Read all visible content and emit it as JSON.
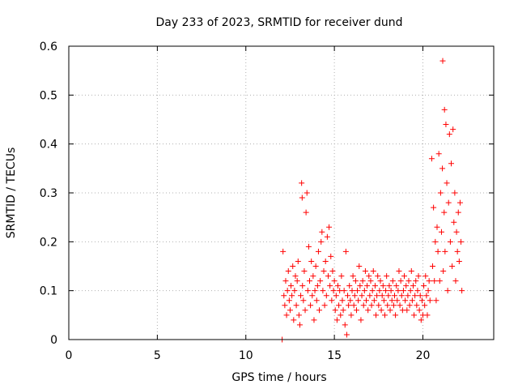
{
  "chart_data": {
    "type": "scatter",
    "title": "Day 233 of 2023, SRMTID for receiver dund",
    "xlabel": "GPS time / hours",
    "ylabel": "SRMTID / TECUs",
    "xlim": [
      0,
      24
    ],
    "ylim": [
      0,
      0.6
    ],
    "xticks": [
      0,
      5,
      10,
      15,
      20
    ],
    "yticks": [
      0,
      0.1,
      0.2,
      0.3,
      0.4,
      0.5,
      0.6
    ],
    "xtick_labels": [
      "0",
      "5",
      "10",
      "15",
      "20"
    ],
    "ytick_labels": [
      "0",
      "0.1",
      "0.2",
      "0.3",
      "0.4",
      "0.5",
      "0.6"
    ],
    "grid": true,
    "marker": "+",
    "marker_color": "#ff0000",
    "series": [
      {
        "name": "SRMTID",
        "points": [
          [
            12.05,
            0.0
          ],
          [
            12.1,
            0.18
          ],
          [
            12.15,
            0.09
          ],
          [
            12.2,
            0.07
          ],
          [
            12.25,
            0.12
          ],
          [
            12.3,
            0.05
          ],
          [
            12.35,
            0.1
          ],
          [
            12.4,
            0.14
          ],
          [
            12.45,
            0.08
          ],
          [
            12.5,
            0.06
          ],
          [
            12.55,
            0.11
          ],
          [
            12.6,
            0.09
          ],
          [
            12.65,
            0.15
          ],
          [
            12.7,
            0.04
          ],
          [
            12.75,
            0.1
          ],
          [
            12.8,
            0.13
          ],
          [
            12.85,
            0.07
          ],
          [
            12.9,
            0.12
          ],
          [
            12.95,
            0.16
          ],
          [
            13.0,
            0.05
          ],
          [
            13.05,
            0.03
          ],
          [
            13.1,
            0.09
          ],
          [
            13.15,
            0.32
          ],
          [
            13.18,
            0.29
          ],
          [
            13.2,
            0.11
          ],
          [
            13.25,
            0.08
          ],
          [
            13.3,
            0.14
          ],
          [
            13.35,
            0.06
          ],
          [
            13.4,
            0.26
          ],
          [
            13.45,
            0.3
          ],
          [
            13.5,
            0.1
          ],
          [
            13.55,
            0.19
          ],
          [
            13.6,
            0.12
          ],
          [
            13.65,
            0.07
          ],
          [
            13.7,
            0.16
          ],
          [
            13.75,
            0.09
          ],
          [
            13.8,
            0.13
          ],
          [
            13.85,
            0.04
          ],
          [
            13.9,
            0.1
          ],
          [
            13.95,
            0.15
          ],
          [
            14.0,
            0.08
          ],
          [
            14.05,
            0.11
          ],
          [
            14.1,
            0.18
          ],
          [
            14.15,
            0.06
          ],
          [
            14.2,
            0.12
          ],
          [
            14.25,
            0.2
          ],
          [
            14.3,
            0.22
          ],
          [
            14.35,
            0.1
          ],
          [
            14.4,
            0.14
          ],
          [
            14.45,
            0.07
          ],
          [
            14.5,
            0.16
          ],
          [
            14.55,
            0.09
          ],
          [
            14.6,
            0.21
          ],
          [
            14.65,
            0.13
          ],
          [
            14.7,
            0.23
          ],
          [
            14.75,
            0.11
          ],
          [
            14.8,
            0.17
          ],
          [
            14.85,
            0.08
          ],
          [
            14.9,
            0.14
          ],
          [
            14.95,
            0.1
          ],
          [
            15.0,
            0.12
          ],
          [
            15.05,
            0.06
          ],
          [
            15.1,
            0.09
          ],
          [
            15.15,
            0.04
          ],
          [
            15.2,
            0.11
          ],
          [
            15.25,
            0.07
          ],
          [
            15.3,
            0.1
          ],
          [
            15.35,
            0.05
          ],
          [
            15.4,
            0.13
          ],
          [
            15.45,
            0.08
          ],
          [
            15.5,
            0.06
          ],
          [
            15.55,
            0.1
          ],
          [
            15.6,
            0.03
          ],
          [
            15.65,
            0.18
          ],
          [
            15.7,
            0.01
          ],
          [
            15.75,
            0.09
          ],
          [
            15.8,
            0.07
          ],
          [
            15.85,
            0.11
          ],
          [
            15.9,
            0.08
          ],
          [
            15.95,
            0.05
          ],
          [
            16.0,
            0.1
          ],
          [
            16.05,
            0.13
          ],
          [
            16.1,
            0.07
          ],
          [
            16.15,
            0.09
          ],
          [
            16.2,
            0.12
          ],
          [
            16.25,
            0.06
          ],
          [
            16.3,
            0.1
          ],
          [
            16.35,
            0.08
          ],
          [
            16.4,
            0.15
          ],
          [
            16.45,
            0.11
          ],
          [
            16.5,
            0.04
          ],
          [
            16.55,
            0.09
          ],
          [
            16.6,
            0.12
          ],
          [
            16.65,
            0.07
          ],
          [
            16.7,
            0.1
          ],
          [
            16.75,
            0.14
          ],
          [
            16.8,
            0.08
          ],
          [
            16.85,
            0.11
          ],
          [
            16.9,
            0.06
          ],
          [
            16.95,
            0.13
          ],
          [
            17.0,
            0.09
          ],
          [
            17.05,
            0.12
          ],
          [
            17.1,
            0.07
          ],
          [
            17.15,
            0.1
          ],
          [
            17.2,
            0.14
          ],
          [
            17.25,
            0.08
          ],
          [
            17.3,
            0.11
          ],
          [
            17.35,
            0.05
          ],
          [
            17.4,
            0.09
          ],
          [
            17.45,
            0.13
          ],
          [
            17.5,
            0.07
          ],
          [
            17.55,
            0.1
          ],
          [
            17.6,
            0.12
          ],
          [
            17.65,
            0.06
          ],
          [
            17.7,
            0.09
          ],
          [
            17.75,
            0.11
          ],
          [
            17.8,
            0.08
          ],
          [
            17.85,
            0.05
          ],
          [
            17.9,
            0.1
          ],
          [
            17.95,
            0.13
          ],
          [
            18.0,
            0.07
          ],
          [
            18.05,
            0.09
          ],
          [
            18.1,
            0.11
          ],
          [
            18.15,
            0.06
          ],
          [
            18.2,
            0.1
          ],
          [
            18.25,
            0.08
          ],
          [
            18.3,
            0.12
          ],
          [
            18.35,
            0.07
          ],
          [
            18.4,
            0.09
          ],
          [
            18.45,
            0.05
          ],
          [
            18.5,
            0.11
          ],
          [
            18.55,
            0.08
          ],
          [
            18.6,
            0.1
          ],
          [
            18.65,
            0.14
          ],
          [
            18.7,
            0.07
          ],
          [
            18.75,
            0.12
          ],
          [
            18.8,
            0.09
          ],
          [
            18.85,
            0.06
          ],
          [
            18.9,
            0.1
          ],
          [
            18.95,
            0.13
          ],
          [
            19.0,
            0.08
          ],
          [
            19.05,
            0.11
          ],
          [
            19.1,
            0.06
          ],
          [
            19.15,
            0.09
          ],
          [
            19.2,
            0.12
          ],
          [
            19.25,
            0.07
          ],
          [
            19.3,
            0.1
          ],
          [
            19.35,
            0.14
          ],
          [
            19.4,
            0.08
          ],
          [
            19.45,
            0.11
          ],
          [
            19.5,
            0.05
          ],
          [
            19.55,
            0.09
          ],
          [
            19.6,
            0.12
          ],
          [
            19.65,
            0.07
          ],
          [
            19.7,
            0.1
          ],
          [
            19.75,
            0.13
          ],
          [
            19.8,
            0.06
          ],
          [
            19.85,
            0.09
          ],
          [
            19.9,
            0.04
          ],
          [
            19.95,
            0.08
          ],
          [
            20.0,
            0.05
          ],
          [
            20.05,
            0.11
          ],
          [
            20.1,
            0.07
          ],
          [
            20.15,
            0.13
          ],
          [
            20.2,
            0.09
          ],
          [
            20.25,
            0.05
          ],
          [
            20.3,
            0.1
          ],
          [
            20.35,
            0.12
          ],
          [
            20.4,
            0.08
          ],
          [
            20.5,
            0.37
          ],
          [
            20.55,
            0.15
          ],
          [
            20.6,
            0.27
          ],
          [
            20.65,
            0.12
          ],
          [
            20.7,
            0.2
          ],
          [
            20.75,
            0.08
          ],
          [
            20.8,
            0.23
          ],
          [
            20.85,
            0.18
          ],
          [
            20.9,
            0.38
          ],
          [
            20.95,
            0.12
          ],
          [
            21.0,
            0.3
          ],
          [
            21.05,
            0.22
          ],
          [
            21.1,
            0.35
          ],
          [
            21.12,
            0.57
          ],
          [
            21.15,
            0.14
          ],
          [
            21.2,
            0.26
          ],
          [
            21.22,
            0.47
          ],
          [
            21.25,
            0.18
          ],
          [
            21.3,
            0.44
          ],
          [
            21.35,
            0.32
          ],
          [
            21.4,
            0.1
          ],
          [
            21.45,
            0.28
          ],
          [
            21.5,
            0.42
          ],
          [
            21.55,
            0.2
          ],
          [
            21.6,
            0.36
          ],
          [
            21.65,
            0.15
          ],
          [
            21.7,
            0.43
          ],
          [
            21.75,
            0.24
          ],
          [
            21.8,
            0.3
          ],
          [
            21.85,
            0.12
          ],
          [
            21.9,
            0.22
          ],
          [
            21.95,
            0.18
          ],
          [
            22.0,
            0.26
          ],
          [
            22.05,
            0.16
          ],
          [
            22.1,
            0.28
          ],
          [
            22.15,
            0.2
          ],
          [
            22.2,
            0.1
          ]
        ]
      }
    ]
  }
}
